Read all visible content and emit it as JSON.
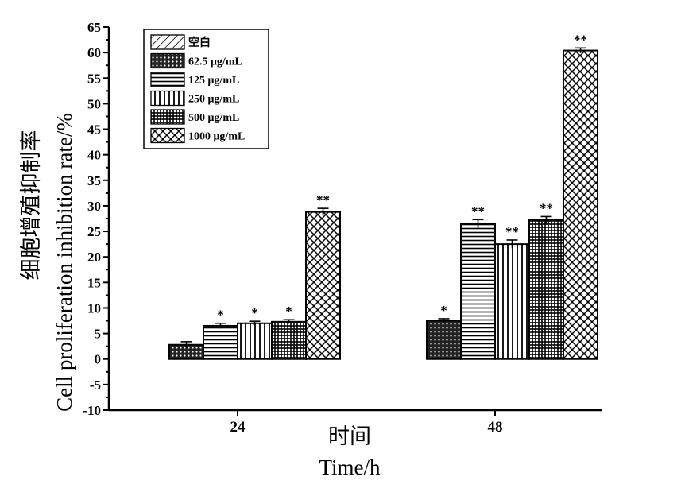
{
  "chart_data": {
    "type": "bar",
    "categories": [
      "24",
      "48"
    ],
    "ylabel_zh": "细胞增殖抑制率",
    "ylabel_en": "Cell proliferation inhibition rate/%",
    "xlabel_zh": "时间",
    "xlabel_en": "Time/h",
    "ylim": [
      -10,
      65
    ],
    "yticks": [
      -10,
      -5,
      0,
      5,
      10,
      15,
      20,
      25,
      30,
      35,
      40,
      45,
      50,
      55,
      60,
      65
    ],
    "legend_position": "top-left",
    "series": [
      {
        "name": "空白",
        "pattern": "diagonal",
        "values": [
          0,
          0
        ],
        "errors": [
          0,
          0
        ],
        "sig": [
          "",
          ""
        ]
      },
      {
        "name": "62.5 μg/mL",
        "pattern": "dots",
        "values": [
          2.8,
          7.5
        ],
        "errors": [
          0.6,
          0.4
        ],
        "sig": [
          "",
          "*"
        ]
      },
      {
        "name": "125 μg/mL",
        "pattern": "horizontal",
        "values": [
          6.5,
          26.5
        ],
        "errors": [
          0.5,
          0.8
        ],
        "sig": [
          "*",
          "**"
        ]
      },
      {
        "name": "250 μg/mL",
        "pattern": "vertical",
        "values": [
          7.0,
          22.5
        ],
        "errors": [
          0.4,
          0.8
        ],
        "sig": [
          "*",
          "**"
        ]
      },
      {
        "name": "500 μg/mL",
        "pattern": "grid",
        "values": [
          7.3,
          27.2
        ],
        "errors": [
          0.4,
          0.7
        ],
        "sig": [
          "*",
          "**"
        ]
      },
      {
        "name": "1000 μg/mL",
        "pattern": "crosshatch",
        "values": [
          28.8,
          60.4
        ],
        "errors": [
          0.7,
          0.5
        ],
        "sig": [
          "**",
          "**"
        ]
      }
    ]
  }
}
